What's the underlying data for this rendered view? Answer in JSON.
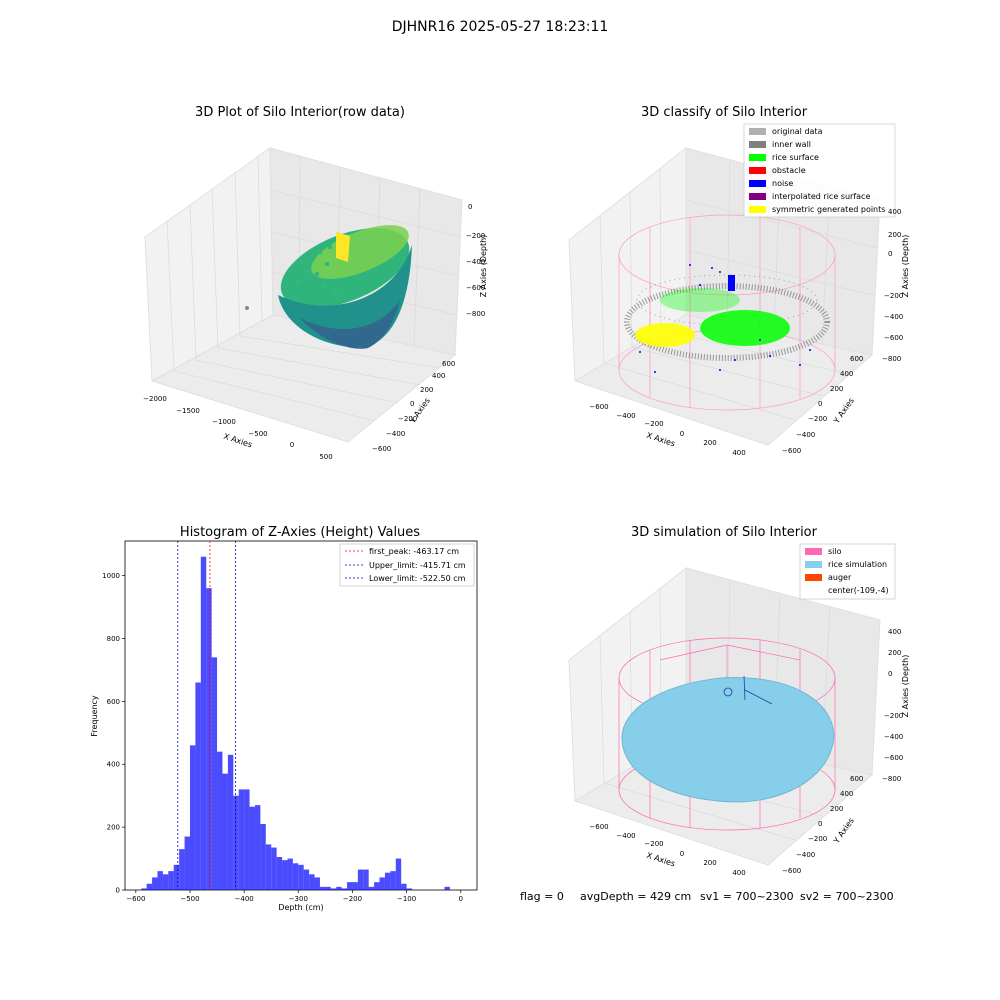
{
  "figure_title": "DJHNR16 2025-05-27 18:23:11",
  "panels": {
    "raw": {
      "title": "3D Plot of Silo Interior(row data)",
      "xlabel": "X Axies",
      "ylabel": "Y Axies",
      "zlabel": "Z Axies (Depth)",
      "xticks": [
        "−2000",
        "−1500",
        "−1000",
        "−500",
        "0",
        "500"
      ],
      "yticks": [
        "−600",
        "−400",
        "−200",
        "0",
        "200",
        "400",
        "600"
      ],
      "zticks": [
        "0",
        "−200",
        "−400",
        "−600",
        "−800"
      ]
    },
    "classify": {
      "title": "3D classify of Silo Interior",
      "xlabel": "X Axies",
      "ylabel": "Y Axies",
      "zlabel": "Z Axies (Depth)",
      "xticks": [
        "−600",
        "−400",
        "−200",
        "0",
        "200",
        "400"
      ],
      "yticks": [
        "−600",
        "−400",
        "−200",
        "0",
        "200",
        "400",
        "600"
      ],
      "zticks": [
        "400",
        "200",
        "0",
        "−200",
        "−400",
        "−600",
        "−800"
      ],
      "legend": [
        {
          "label": "original data",
          "color": "#b0b0b0"
        },
        {
          "label": "inner wall",
          "color": "#808080"
        },
        {
          "label": "rice surface",
          "color": "#00ff00"
        },
        {
          "label": "obstacle",
          "color": "#ff0000"
        },
        {
          "label": "noise",
          "color": "#0000ff"
        },
        {
          "label": "interpolated rice surface",
          "color": "#800080"
        },
        {
          "label": "symmetric generated points",
          "color": "#ffff00"
        }
      ]
    },
    "simulation": {
      "title": "3D simulation of Silo Interior",
      "xlabel": "X Axies",
      "ylabel": "Y Axies",
      "zlabel": "Z Axies (Depth)",
      "xticks": [
        "−600",
        "−400",
        "−200",
        "0",
        "200",
        "400"
      ],
      "yticks": [
        "−600",
        "−400",
        "−200",
        "0",
        "200",
        "400",
        "600"
      ],
      "zticks": [
        "400",
        "200",
        "0",
        "−200",
        "−400",
        "−600",
        "−800"
      ],
      "legend": [
        {
          "label": "silo",
          "color": "#ff69b4"
        },
        {
          "label": "rice simulation",
          "color": "#87ceeb"
        },
        {
          "label": "auger",
          "color": "#ff4500"
        },
        {
          "label": "center(-109,-4)",
          "color": ""
        }
      ]
    }
  },
  "chart_data": [
    {
      "type": "bar",
      "title": "Histogram of Z-Axies (Height) Values",
      "xlabel": "Depth (cm)",
      "ylabel": "Frequency",
      "xlim": [
        -620,
        30
      ],
      "ylim": [
        0,
        1110
      ],
      "xticks": [
        -600,
        -500,
        -400,
        -300,
        -200,
        -100,
        0
      ],
      "yticks": [
        0,
        200,
        400,
        600,
        800,
        1000
      ],
      "bar_color": "#0000ff",
      "bins_left_edge": [
        -590,
        -580,
        -570,
        -560,
        -550,
        -540,
        -530,
        -520,
        -510,
        -500,
        -490,
        -480,
        -470,
        -460,
        -450,
        -440,
        -430,
        -420,
        -410,
        -400,
        -390,
        -380,
        -370,
        -360,
        -350,
        -340,
        -330,
        -320,
        -310,
        -300,
        -290,
        -280,
        -270,
        -260,
        -250,
        -240,
        -230,
        -220,
        -210,
        -200,
        -190,
        -180,
        -170,
        -160,
        -150,
        -140,
        -130,
        -120,
        -110,
        -100,
        -90,
        -80,
        -70,
        -60,
        -50,
        -40,
        -30,
        -20,
        -10
      ],
      "bin_width": 10,
      "values": [
        5,
        20,
        40,
        60,
        50,
        60,
        80,
        130,
        170,
        460,
        660,
        1060,
        960,
        740,
        440,
        370,
        430,
        300,
        320,
        320,
        265,
        270,
        210,
        145,
        135,
        105,
        95,
        100,
        85,
        80,
        65,
        50,
        40,
        10,
        10,
        5,
        10,
        5,
        25,
        25,
        65,
        65,
        10,
        25,
        40,
        55,
        60,
        100,
        20,
        5,
        0,
        0,
        0,
        0,
        0,
        0,
        10,
        0,
        0
      ],
      "vlines": [
        {
          "label": "first_peak: -463.17 cm",
          "x": -463.17,
          "color": "#ff0000"
        },
        {
          "label": "Upper_limit: -415.71 cm",
          "x": -415.71,
          "color": "#0000cc"
        },
        {
          "label": "Lower_limit: -522.50 cm",
          "x": -522.5,
          "color": "#0000cc"
        }
      ],
      "legend_position": "top-right"
    }
  ],
  "footer": {
    "flag": "flag = 0",
    "avg": "avgDepth = 429 cm",
    "sv1": "sv1 = 700~2300",
    "sv2": "sv2 = 700~2300"
  }
}
